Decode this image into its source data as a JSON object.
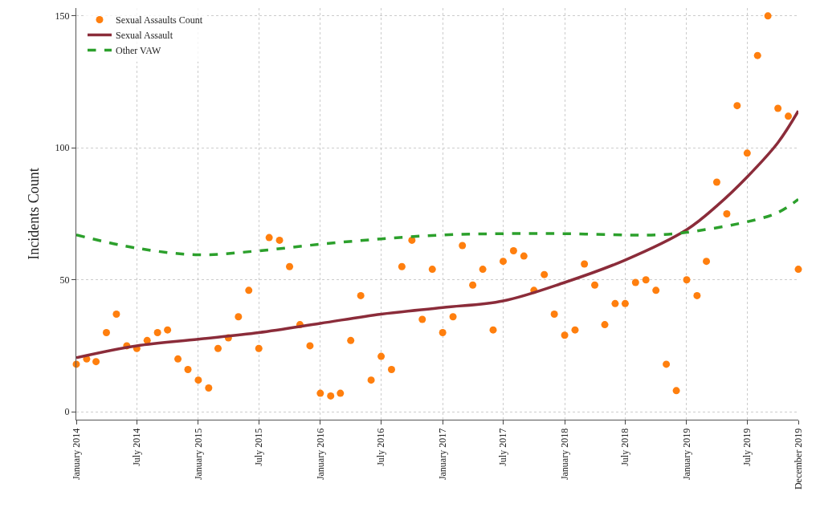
{
  "chart_data": {
    "type": "scatter",
    "ylabel": "Incidents Count",
    "xlim": [
      "2014-01",
      "2019-12"
    ],
    "ylim": [
      -3,
      153
    ],
    "xticks": [
      {
        "value": "2014-01",
        "label": "January 2014"
      },
      {
        "value": "2014-07",
        "label": "July 2014"
      },
      {
        "value": "2015-01",
        "label": "January 2015"
      },
      {
        "value": "2015-07",
        "label": "July 2015"
      },
      {
        "value": "2016-01",
        "label": "January 2016"
      },
      {
        "value": "2016-07",
        "label": "July 2016"
      },
      {
        "value": "2017-01",
        "label": "January 2017"
      },
      {
        "value": "2017-07",
        "label": "July 2017"
      },
      {
        "value": "2018-01",
        "label": "January 2018"
      },
      {
        "value": "2018-07",
        "label": "July 2018"
      },
      {
        "value": "2019-01",
        "label": "January 2019"
      },
      {
        "value": "2019-07",
        "label": "July 2019"
      },
      {
        "value": "2019-12",
        "label": "December 2019"
      }
    ],
    "yticks": [
      0,
      50,
      100,
      150
    ],
    "grid": true,
    "legend": "top left",
    "series": [
      {
        "name": "Sexual Assaults Count",
        "marker": "circle",
        "color": "#ff7f0e",
        "x": [
          "2014-01",
          "2014-02",
          "2014-03",
          "2014-04",
          "2014-05",
          "2014-06",
          "2014-07",
          "2014-08",
          "2014-09",
          "2014-10",
          "2014-11",
          "2014-12",
          "2015-01",
          "2015-02",
          "2015-03",
          "2015-04",
          "2015-05",
          "2015-06",
          "2015-07",
          "2015-08",
          "2015-09",
          "2015-10",
          "2015-11",
          "2015-12",
          "2016-01",
          "2016-02",
          "2016-03",
          "2016-04",
          "2016-05",
          "2016-06",
          "2016-07",
          "2016-08",
          "2016-09",
          "2016-10",
          "2016-11",
          "2016-12",
          "2017-01",
          "2017-02",
          "2017-03",
          "2017-04",
          "2017-05",
          "2017-06",
          "2017-07",
          "2017-08",
          "2017-09",
          "2017-10",
          "2017-11",
          "2017-12",
          "2018-01",
          "2018-02",
          "2018-03",
          "2018-04",
          "2018-05",
          "2018-06",
          "2018-07",
          "2018-08",
          "2018-09",
          "2018-10",
          "2018-11",
          "2018-12",
          "2019-01",
          "2019-02",
          "2019-03",
          "2019-04",
          "2019-05",
          "2019-06",
          "2019-07",
          "2019-08",
          "2019-09",
          "2019-10",
          "2019-11",
          "2019-12"
        ],
        "values": [
          18,
          20,
          19,
          30,
          37,
          25,
          24,
          27,
          30,
          31,
          20,
          16,
          12,
          9,
          24,
          28,
          36,
          46,
          24,
          66,
          65,
          55,
          33,
          25,
          7,
          6,
          7,
          27,
          44,
          12,
          21,
          16,
          55,
          65,
          35,
          54,
          30,
          36,
          63,
          48,
          54,
          31,
          57,
          61,
          59,
          46,
          52,
          37,
          29,
          31,
          56,
          48,
          33,
          41,
          41,
          49,
          50,
          46,
          18,
          8,
          50,
          44,
          57,
          87,
          75,
          116,
          98,
          135,
          150,
          115,
          112,
          54
        ]
      },
      {
        "name": "Sexual Assault",
        "type": "line",
        "line_style": "solid",
        "color": "#8b2c3a",
        "x": [
          "2014-01",
          "2014-07",
          "2015-01",
          "2015-07",
          "2016-01",
          "2016-07",
          "2017-01",
          "2017-07",
          "2018-01",
          "2018-07",
          "2019-01",
          "2019-04",
          "2019-07",
          "2019-10",
          "2019-12"
        ],
        "values": [
          20.5,
          25,
          27.5,
          30,
          33.5,
          37,
          39.5,
          42,
          49,
          57.5,
          69,
          78,
          89,
          102,
          114
        ]
      },
      {
        "name": "Other VAW",
        "type": "line",
        "line_style": "dashed",
        "color": "#2ca02c",
        "x": [
          "2014-01",
          "2014-07",
          "2015-01",
          "2015-07",
          "2016-01",
          "2016-07",
          "2017-01",
          "2017-07",
          "2018-01",
          "2018-07",
          "2018-10",
          "2019-01",
          "2019-07",
          "2019-10",
          "2019-12"
        ],
        "values": [
          67,
          62,
          59.5,
          61,
          63.5,
          65.5,
          67,
          67.5,
          67.5,
          67,
          67,
          68,
          72,
          75.5,
          80.5
        ]
      }
    ]
  }
}
